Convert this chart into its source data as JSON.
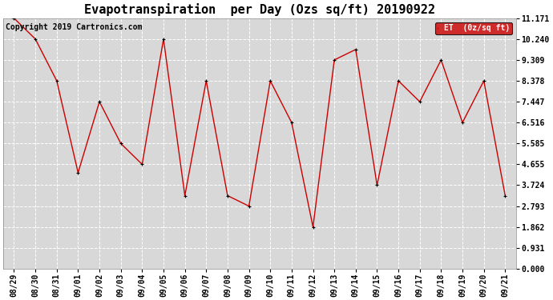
{
  "title": "Evapotranspiration  per Day (Ozs sq/ft) 20190922",
  "copyright": "Copyright 2019 Cartronics.com",
  "legend_label": "ET  (0z/sq ft)",
  "x_labels": [
    "08/29",
    "08/30",
    "08/31",
    "09/01",
    "09/02",
    "09/03",
    "09/04",
    "09/05",
    "09/06",
    "09/07",
    "09/08",
    "09/09",
    "09/10",
    "09/11",
    "09/12",
    "09/13",
    "09/14",
    "09/15",
    "09/16",
    "09/17",
    "09/18",
    "09/19",
    "09/20",
    "09/21"
  ],
  "y_values": [
    11.171,
    10.24,
    8.378,
    4.282,
    7.447,
    5.585,
    4.655,
    10.24,
    3.259,
    8.378,
    3.259,
    2.793,
    8.378,
    6.516,
    1.862,
    9.309,
    9.775,
    3.724,
    8.378,
    7.447,
    9.309,
    6.516,
    8.378,
    3.259
  ],
  "y_ticks": [
    0.0,
    0.931,
    1.862,
    2.793,
    3.724,
    4.655,
    5.585,
    6.516,
    7.447,
    8.378,
    9.309,
    10.24,
    11.171
  ],
  "line_color": "#cc0000",
  "marker_color": "#000000",
  "plot_bg_color": "#d8d8d8",
  "fig_bg_color": "#ffffff",
  "grid_color": "#ffffff",
  "legend_bg": "#cc0000",
  "legend_text_color": "#ffffff",
  "title_fontsize": 11,
  "tick_fontsize": 7,
  "copyright_fontsize": 7,
  "ylim": [
    0.0,
    11.171
  ]
}
